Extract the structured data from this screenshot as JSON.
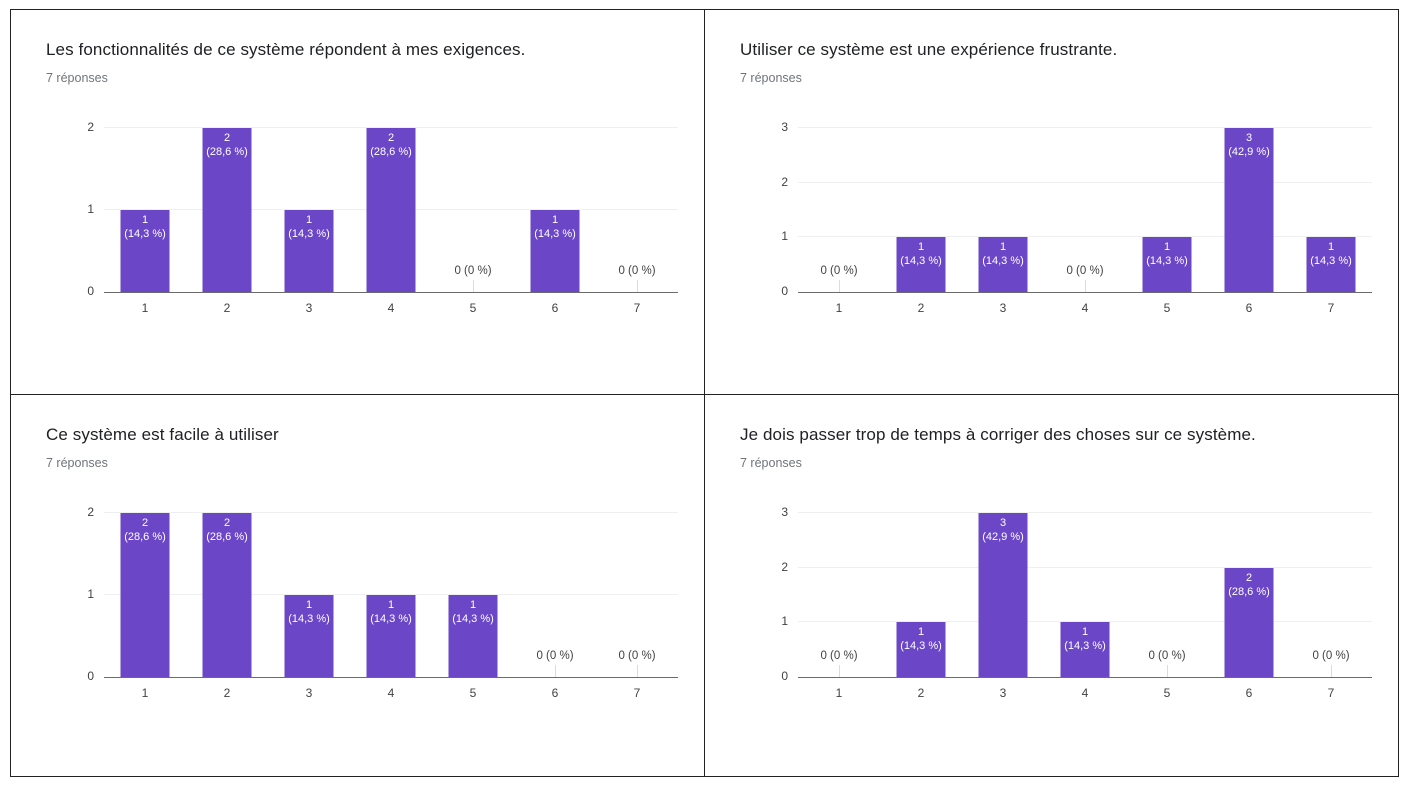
{
  "colors": {
    "bar": "#6b46c6",
    "grid_line": "#efefef",
    "axis_line": "#6b6b6b",
    "border": "#222222",
    "title_text": "#202124",
    "subtitle_text": "#70757a",
    "tick_text": "#424242",
    "bar_label_text": "#ffffff",
    "zero_tick": "#dadce0",
    "background": "#ffffff"
  },
  "chart_data": [
    {
      "type": "bar",
      "title": "Les fonctionnalités de ce système répondent à mes exigences.",
      "subtitle": "7 réponses",
      "categories": [
        "1",
        "2",
        "3",
        "4",
        "5",
        "6",
        "7"
      ],
      "values": [
        1,
        2,
        1,
        2,
        0,
        1,
        0
      ],
      "bar_labels": [
        {
          "count": "1",
          "pct": "(14,3 %)"
        },
        {
          "count": "2",
          "pct": "(28,6 %)"
        },
        {
          "count": "1",
          "pct": "(14,3 %)"
        },
        {
          "count": "2",
          "pct": "(28,6 %)"
        },
        {
          "zero": "0 (0 %)"
        },
        {
          "count": "1",
          "pct": "(14,3 %)"
        },
        {
          "zero": "0 (0 %)"
        }
      ],
      "y_ticks": [
        "0",
        "1",
        "2"
      ],
      "ylim": [
        0,
        2
      ],
      "xlabel": "",
      "ylabel": "",
      "grid": true,
      "legend": "none"
    },
    {
      "type": "bar",
      "title": "Utiliser ce système est une expérience frustrante.",
      "subtitle": "7 réponses",
      "categories": [
        "1",
        "2",
        "3",
        "4",
        "5",
        "6",
        "7"
      ],
      "values": [
        0,
        1,
        1,
        0,
        1,
        3,
        1
      ],
      "bar_labels": [
        {
          "zero": "0 (0 %)"
        },
        {
          "count": "1",
          "pct": "(14,3 %)"
        },
        {
          "count": "1",
          "pct": "(14,3 %)"
        },
        {
          "zero": "0 (0 %)"
        },
        {
          "count": "1",
          "pct": "(14,3 %)"
        },
        {
          "count": "3",
          "pct": "(42,9 %)"
        },
        {
          "count": "1",
          "pct": "(14,3 %)"
        }
      ],
      "y_ticks": [
        "0",
        "1",
        "2",
        "3"
      ],
      "ylim": [
        0,
        3
      ],
      "xlabel": "",
      "ylabel": "",
      "grid": true,
      "legend": "none"
    },
    {
      "type": "bar",
      "title": "Ce système est facile à utiliser",
      "subtitle": "7 réponses",
      "categories": [
        "1",
        "2",
        "3",
        "4",
        "5",
        "6",
        "7"
      ],
      "values": [
        2,
        2,
        1,
        1,
        1,
        0,
        0
      ],
      "bar_labels": [
        {
          "count": "2",
          "pct": "(28,6 %)"
        },
        {
          "count": "2",
          "pct": "(28,6 %)"
        },
        {
          "count": "1",
          "pct": "(14,3 %)"
        },
        {
          "count": "1",
          "pct": "(14,3 %)"
        },
        {
          "count": "1",
          "pct": "(14,3 %)"
        },
        {
          "zero": "0 (0 %)"
        },
        {
          "zero": "0 (0 %)"
        }
      ],
      "y_ticks": [
        "0",
        "1",
        "2"
      ],
      "ylim": [
        0,
        2
      ],
      "xlabel": "",
      "ylabel": "",
      "grid": true,
      "legend": "none"
    },
    {
      "type": "bar",
      "title": "Je dois passer trop de temps à corriger des choses sur ce système.",
      "subtitle": "7 réponses",
      "categories": [
        "1",
        "2",
        "3",
        "4",
        "5",
        "6",
        "7"
      ],
      "values": [
        0,
        1,
        3,
        1,
        0,
        2,
        0
      ],
      "bar_labels": [
        {
          "zero": "0 (0 %)"
        },
        {
          "count": "1",
          "pct": "(14,3 %)"
        },
        {
          "count": "3",
          "pct": "(42,9 %)"
        },
        {
          "count": "1",
          "pct": "(14,3 %)"
        },
        {
          "zero": "0 (0 %)"
        },
        {
          "count": "2",
          "pct": "(28,6 %)"
        },
        {
          "zero": "0 (0 %)"
        }
      ],
      "y_ticks": [
        "0",
        "1",
        "2",
        "3"
      ],
      "ylim": [
        0,
        3
      ],
      "xlabel": "",
      "ylabel": "",
      "grid": true,
      "legend": "none"
    }
  ]
}
